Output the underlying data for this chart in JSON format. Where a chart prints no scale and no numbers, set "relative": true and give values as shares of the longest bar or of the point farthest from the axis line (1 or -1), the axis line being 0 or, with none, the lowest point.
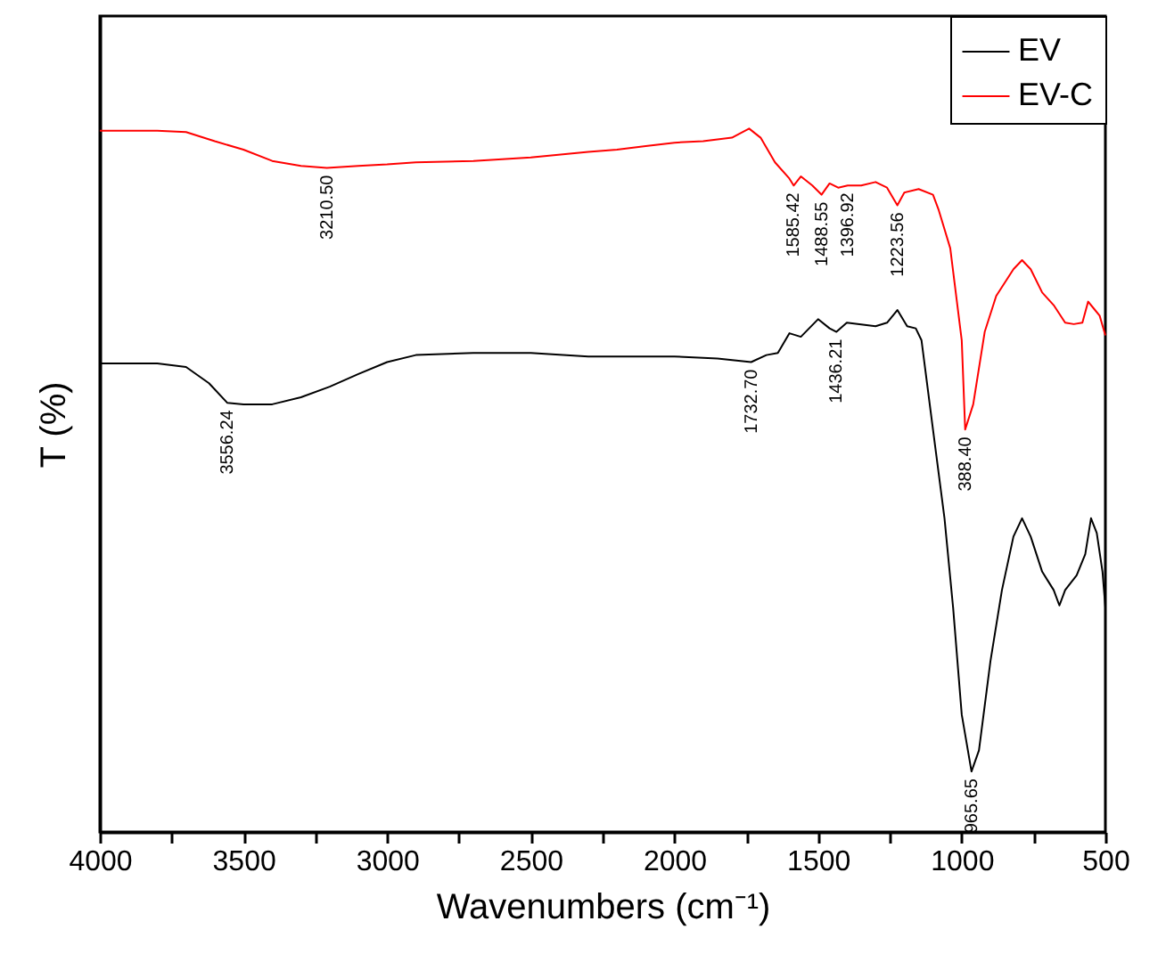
{
  "chart_data": {
    "type": "line",
    "xlabel": "Wavenumbers (cm⁻¹)",
    "ylabel": "T (%)",
    "relative": true,
    "legend": "top right",
    "xlim": [
      4000,
      500
    ],
    "xticks": [
      4000,
      {
        "value": 3750,
        "label": null
      },
      3500,
      {
        "value": 3250,
        "label": null
      },
      3000,
      {
        "value": 2750,
        "label": null
      },
      2500,
      {
        "value": 2250,
        "label": null
      },
      2000,
      {
        "value": 1750,
        "label": null
      },
      1500,
      {
        "value": 1250,
        "label": null
      },
      1000,
      {
        "value": 750,
        "label": null
      },
      500
    ],
    "series": [
      {
        "name": "EV",
        "color": "#000000",
        "x": [
          4000,
          3800,
          3700,
          3620,
          3556,
          3500,
          3400,
          3300,
          3200,
          3100,
          3000,
          2900,
          2700,
          2500,
          2300,
          2200,
          2000,
          1850,
          1733,
          1680,
          1640,
          1600,
          1560,
          1500,
          1460,
          1436,
          1400,
          1300,
          1260,
          1224,
          1190,
          1160,
          1140,
          1100,
          1060,
          1030,
          1000,
          966,
          940,
          900,
          860,
          820,
          790,
          760,
          720,
          700,
          680,
          660,
          640,
          600,
          570,
          550,
          530,
          510,
          500
        ],
        "values": [
          0.666,
          0.666,
          0.661,
          0.638,
          0.61,
          0.608,
          0.608,
          0.618,
          0.633,
          0.651,
          0.668,
          0.678,
          0.681,
          0.681,
          0.676,
          0.676,
          0.676,
          0.673,
          0.668,
          0.678,
          0.681,
          0.709,
          0.704,
          0.729,
          0.716,
          0.711,
          0.724,
          0.719,
          0.724,
          0.742,
          0.719,
          0.716,
          0.699,
          0.572,
          0.446,
          0.319,
          0.167,
          0.086,
          0.116,
          0.243,
          0.344,
          0.42,
          0.446,
          0.42,
          0.37,
          0.357,
          0.344,
          0.322,
          0.344,
          0.365,
          0.395,
          0.446,
          0.425,
          0.37,
          0.319
        ]
      },
      {
        "name": "EV-C",
        "color": "#ff0000",
        "x": [
          4000,
          3800,
          3700,
          3600,
          3500,
          3400,
          3300,
          3210,
          3100,
          3000,
          2900,
          2700,
          2500,
          2300,
          2200,
          2100,
          2000,
          1900,
          1800,
          1740,
          1700,
          1650,
          1600,
          1585,
          1560,
          1520,
          1488,
          1460,
          1430,
          1397,
          1350,
          1300,
          1260,
          1224,
          1200,
          1150,
          1100,
          1080,
          1040,
          1000,
          988,
          960,
          920,
          880,
          820,
          790,
          760,
          720,
          680,
          640,
          610,
          580,
          560,
          540,
          520,
          500
        ],
        "values": [
          0.997,
          0.997,
          0.995,
          0.982,
          0.97,
          0.954,
          0.947,
          0.944,
          0.947,
          0.949,
          0.952,
          0.954,
          0.959,
          0.967,
          0.97,
          0.975,
          0.98,
          0.982,
          0.987,
          1.0,
          0.987,
          0.952,
          0.929,
          0.919,
          0.932,
          0.919,
          0.906,
          0.922,
          0.916,
          0.919,
          0.919,
          0.924,
          0.916,
          0.891,
          0.909,
          0.914,
          0.906,
          0.884,
          0.83,
          0.699,
          0.572,
          0.608,
          0.711,
          0.762,
          0.8,
          0.813,
          0.8,
          0.767,
          0.749,
          0.724,
          0.722,
          0.724,
          0.754,
          0.744,
          0.734,
          0.706
        ]
      }
    ],
    "annotations": [
      {
        "text": "3210.50",
        "x": 3210,
        "y": 0.944
      },
      {
        "text": "1585.42",
        "x": 1585,
        "y": 0.919
      },
      {
        "text": "1488.55",
        "x": 1488,
        "y": 0.906
      },
      {
        "text": "1396.92",
        "x": 1397,
        "y": 0.919
      },
      {
        "text": "1223.56",
        "x": 1224,
        "y": 0.891
      },
      {
        "text": "388.40",
        "x": 988,
        "y": 0.572
      },
      {
        "text": "3556.24",
        "x": 3556,
        "y": 0.61
      },
      {
        "text": "1732.70",
        "x": 1733,
        "y": 0.668
      },
      {
        "text": "1436.21",
        "x": 1436,
        "y": 0.711
      },
      {
        "text": "965.65",
        "x": 966,
        "y": 0.086
      }
    ]
  }
}
